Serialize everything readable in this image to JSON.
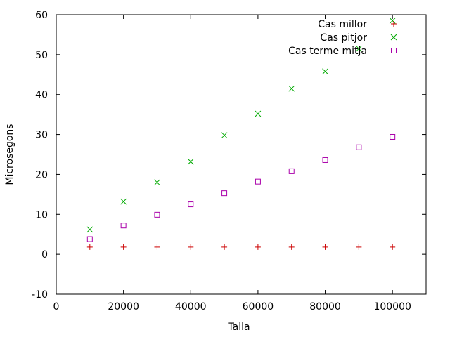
{
  "chart_data": {
    "type": "scatter",
    "title": "",
    "xlabel": "Talla",
    "ylabel": "Microsegons",
    "xlim": [
      0,
      110000
    ],
    "ylim": [
      -10,
      60
    ],
    "xticks": [
      0,
      20000,
      40000,
      60000,
      80000,
      100000
    ],
    "xtick_labels": [
      "0",
      "20000",
      "40000",
      "60000",
      "80000",
      "100000"
    ],
    "yticks": [
      -10,
      0,
      10,
      20,
      30,
      40,
      50,
      60
    ],
    "ytick_labels": [
      "-10",
      "0",
      "10",
      "20",
      "30",
      "40",
      "50",
      "60"
    ],
    "grid": false,
    "legend_position": "top-right",
    "x": [
      10000,
      20000,
      30000,
      40000,
      50000,
      60000,
      70000,
      80000,
      90000,
      100000
    ],
    "series": [
      {
        "name": "Cas millor",
        "marker": "plus",
        "color": "#cc0000",
        "values": [
          1.8,
          1.8,
          1.8,
          1.8,
          1.8,
          1.8,
          1.8,
          1.8,
          1.8,
          1.8
        ]
      },
      {
        "name": "Cas pitjor",
        "marker": "cross",
        "color": "#00aa00",
        "values": [
          6.2,
          13.2,
          18.0,
          23.2,
          29.8,
          35.2,
          41.5,
          45.8,
          51.5,
          58.5
        ]
      },
      {
        "name": "Cas terme mitja",
        "marker": "square",
        "color": "#aa00aa",
        "values": [
          3.8,
          7.2,
          9.9,
          12.5,
          15.3,
          18.2,
          20.8,
          23.6,
          26.8,
          29.4
        ]
      }
    ]
  }
}
